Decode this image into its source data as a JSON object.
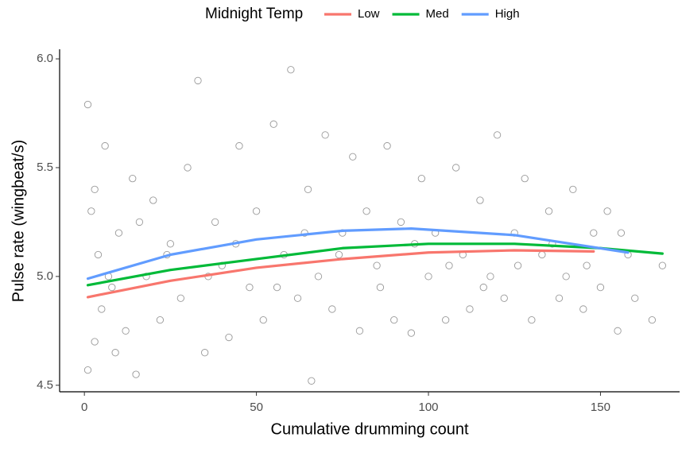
{
  "chart_data": {
    "type": "scatter",
    "x_label": "Cumulative drumming count",
    "y_label": "Pulse rate (wingbeat/s)",
    "legend_title": "Midnight Temp",
    "legend_position": "top",
    "xlim": [
      -7.2,
      173
    ],
    "ylim": [
      4.47,
      6.044
    ],
    "xticks": [
      0,
      50,
      100,
      150
    ],
    "yticks": [
      4.5,
      {
        "value": 5,
        "label": "5.0"
      },
      5.5,
      {
        "value": 6,
        "label": "6.0"
      }
    ],
    "points": {
      "color": "#999999",
      "x": [
        1,
        1,
        2,
        3,
        4,
        5,
        6,
        8,
        10,
        12,
        14,
        15,
        18,
        20,
        22,
        25,
        28,
        30,
        33,
        35,
        38,
        40,
        42,
        45,
        48,
        50,
        52,
        55,
        58,
        60,
        62,
        65,
        66,
        68,
        70,
        72,
        75,
        78,
        80,
        82,
        85,
        88,
        90,
        92,
        95,
        98,
        100,
        102,
        105,
        108,
        110,
        112,
        115,
        118,
        120,
        122,
        125,
        128,
        130,
        133,
        135,
        138,
        140,
        142,
        145,
        148,
        150,
        152,
        155,
        158,
        160,
        165,
        168,
        3,
        7,
        9,
        16,
        24,
        36,
        44,
        56,
        64,
        74,
        86,
        96,
        106,
        116,
        126,
        136,
        146,
        156
      ],
      "y": [
        5.79,
        4.57,
        5.3,
        4.7,
        5.1,
        4.85,
        5.6,
        4.95,
        5.2,
        4.75,
        5.45,
        4.55,
        5.0,
        5.35,
        4.8,
        5.15,
        4.9,
        5.5,
        5.9,
        4.65,
        5.25,
        5.05,
        4.72,
        5.6,
        4.95,
        5.3,
        4.8,
        5.7,
        5.1,
        5.95,
        4.9,
        5.4,
        4.52,
        5.0,
        5.65,
        4.85,
        5.2,
        5.55,
        4.75,
        5.3,
        5.05,
        5.6,
        4.8,
        5.25,
        4.74,
        5.45,
        5.0,
        5.2,
        4.8,
        5.5,
        5.1,
        4.85,
        5.35,
        5.0,
        5.65,
        4.9,
        5.2,
        5.45,
        4.8,
        5.1,
        5.3,
        4.9,
        5.0,
        5.4,
        4.85,
        5.2,
        4.95,
        5.3,
        4.75,
        5.1,
        4.9,
        4.8,
        5.05,
        5.4,
        5.0,
        4.65,
        5.25,
        5.1,
        5.0,
        5.15,
        4.95,
        5.2,
        5.1,
        4.95,
        5.15,
        5.05,
        4.95,
        5.05,
        5.15,
        5.05,
        5.2
      ]
    },
    "series": [
      {
        "name": "Low",
        "color": "#f8766d",
        "x": [
          1,
          25,
          50,
          75,
          100,
          125,
          148
        ],
        "values": [
          4.905,
          4.98,
          5.04,
          5.08,
          5.11,
          5.12,
          5.115
        ]
      },
      {
        "name": "Med",
        "color": "#00ba38",
        "x": [
          1,
          25,
          50,
          75,
          100,
          125,
          150,
          168
        ],
        "values": [
          4.96,
          5.03,
          5.08,
          5.13,
          5.15,
          5.15,
          5.13,
          5.105
        ]
      },
      {
        "name": "High",
        "color": "#619cff",
        "x": [
          1,
          25,
          50,
          75,
          95,
          125,
          158
        ],
        "values": [
          4.99,
          5.1,
          5.17,
          5.21,
          5.22,
          5.19,
          5.11
        ]
      }
    ]
  }
}
